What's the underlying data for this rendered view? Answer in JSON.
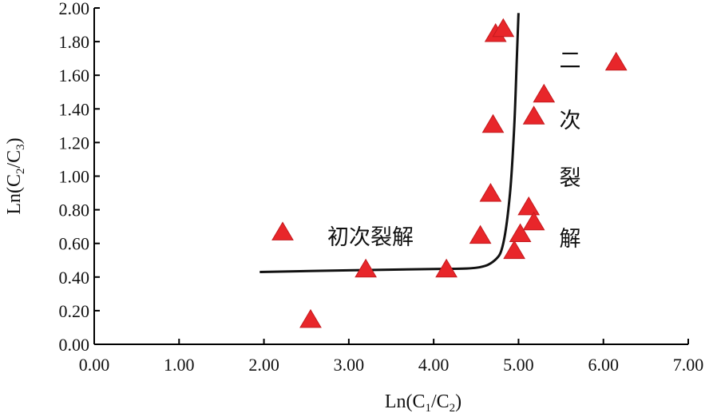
{
  "chart_data": {
    "type": "scatter",
    "xlabel": {
      "base": "Ln(C",
      "sub1": "1",
      "mid": "/C",
      "sub2": "2",
      "end": ")"
    },
    "ylabel": {
      "base": "Ln(C",
      "sub1": "2",
      "mid": "/C",
      "sub2": "3",
      "end": ")"
    },
    "xlim": [
      0,
      7
    ],
    "ylim": [
      0,
      2
    ],
    "x_ticks": [
      "0.00",
      "1.00",
      "2.00",
      "3.00",
      "4.00",
      "5.00",
      "6.00",
      "7.00"
    ],
    "y_ticks": [
      "0.00",
      "0.20",
      "0.40",
      "0.60",
      "0.80",
      "1.00",
      "1.20",
      "1.40",
      "1.60",
      "1.80",
      "2.00"
    ],
    "marker": "triangle",
    "marker_color": "#e8262a",
    "points": [
      {
        "x": 2.22,
        "y": 0.66
      },
      {
        "x": 2.55,
        "y": 0.14
      },
      {
        "x": 3.2,
        "y": 0.44
      },
      {
        "x": 4.15,
        "y": 0.44
      },
      {
        "x": 4.55,
        "y": 0.64
      },
      {
        "x": 4.67,
        "y": 0.89
      },
      {
        "x": 4.7,
        "y": 1.3
      },
      {
        "x": 4.73,
        "y": 1.84
      },
      {
        "x": 4.82,
        "y": 1.87
      },
      {
        "x": 4.95,
        "y": 0.55
      },
      {
        "x": 5.02,
        "y": 0.65
      },
      {
        "x": 5.12,
        "y": 0.81
      },
      {
        "x": 5.18,
        "y": 0.72
      },
      {
        "x": 5.18,
        "y": 1.35
      },
      {
        "x": 5.3,
        "y": 1.48
      },
      {
        "x": 6.15,
        "y": 1.67
      }
    ],
    "trend_curve": [
      {
        "x": 1.95,
        "y": 0.43
      },
      {
        "x": 3.0,
        "y": 0.44
      },
      {
        "x": 4.0,
        "y": 0.448
      },
      {
        "x": 4.5,
        "y": 0.455
      },
      {
        "x": 4.72,
        "y": 0.5
      },
      {
        "x": 4.82,
        "y": 0.6
      },
      {
        "x": 4.9,
        "y": 0.9
      },
      {
        "x": 4.95,
        "y": 1.3
      },
      {
        "x": 4.98,
        "y": 1.7
      },
      {
        "x": 5.0,
        "y": 1.97
      }
    ],
    "annotations": {
      "primary": "初次裂解",
      "secondary": [
        "二",
        "次",
        "裂",
        "解"
      ]
    },
    "grid": false,
    "legend": "none"
  }
}
